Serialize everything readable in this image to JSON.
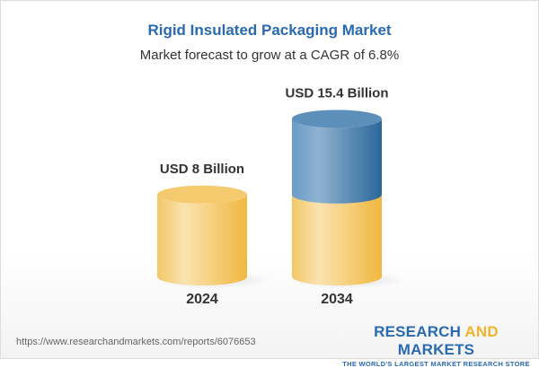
{
  "chart_data": {
    "type": "bar",
    "style": "3d-cylinder",
    "title": "Rigid Insulated Packaging Market",
    "subtitle": "Market forecast to grow at a CAGR of 6.8%",
    "categories": [
      "2024",
      "2034"
    ],
    "values": [
      8,
      15.4
    ],
    "data_labels": [
      "USD 8 Billion",
      "USD 15.4 Billion"
    ],
    "unit": "USD Billion",
    "colors": {
      "base": "#f2c05a",
      "growth": "#3f7fb5"
    }
  },
  "footer": {
    "url": "https://www.researchandmarkets.com/reports/6076653",
    "logo_part1": "RESEARCH ",
    "logo_part2": "AND",
    "logo_part3": " MARKETS",
    "tagline": "THE WORLD'S LARGEST MARKET RESEARCH STORE"
  }
}
